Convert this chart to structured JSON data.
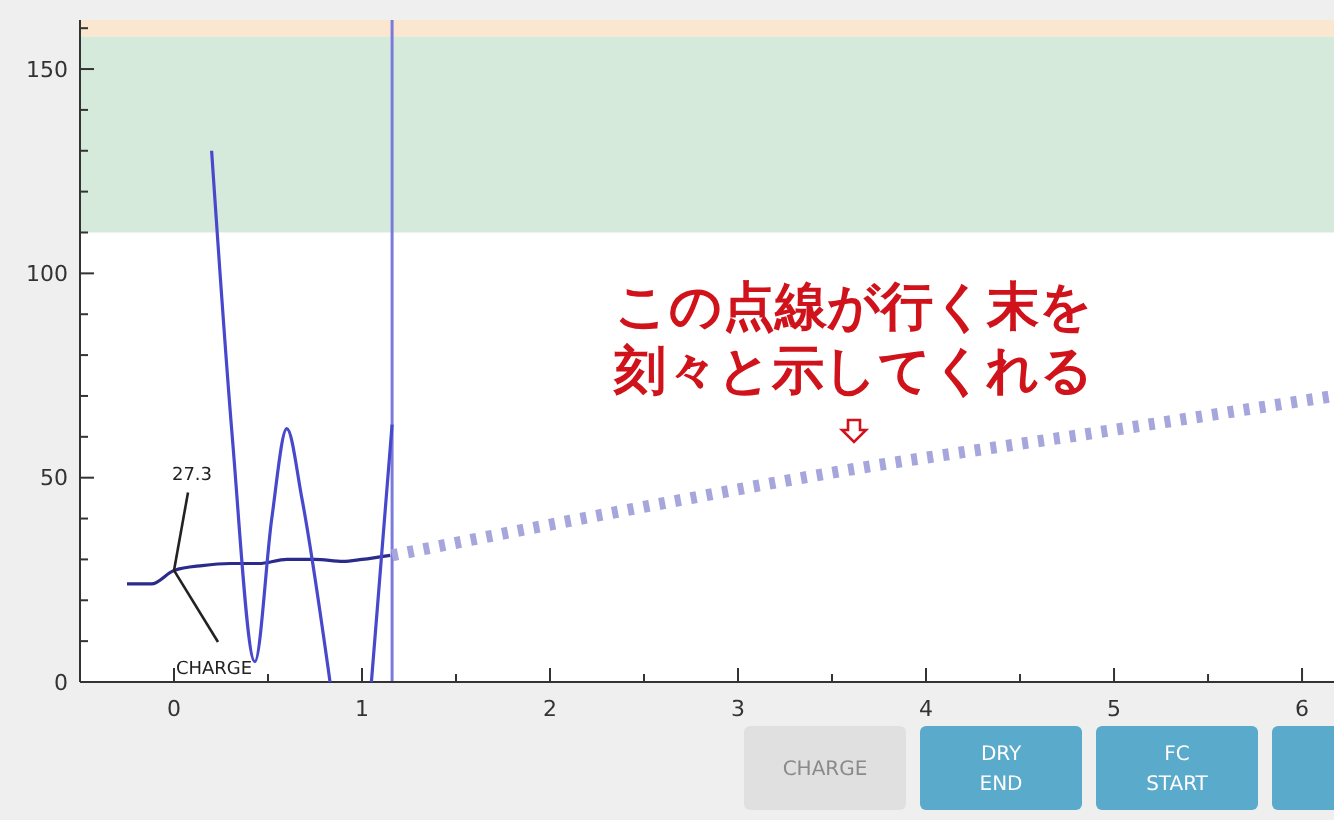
{
  "chart_data": {
    "type": "line",
    "xlim": [
      -0.5,
      6.17
    ],
    "ylim": [
      0,
      162
    ],
    "xticks": [
      0,
      {
        "value": 0.5,
        "label": null
      },
      1,
      {
        "value": 1.5,
        "label": null
      },
      2,
      {
        "value": 2.5,
        "label": null
      },
      3,
      {
        "value": 3.5,
        "label": null
      },
      4,
      {
        "value": 4.5,
        "label": null
      },
      5,
      {
        "value": 5.5,
        "label": null
      },
      6
    ],
    "yticks": [
      0,
      {
        "value": 10,
        "label": null
      },
      {
        "value": 20,
        "label": null
      },
      {
        "value": 30,
        "label": null
      },
      {
        "value": 40,
        "label": null
      },
      50,
      {
        "value": 60,
        "label": null
      },
      {
        "value": 70,
        "label": null
      },
      {
        "value": 80,
        "label": null
      },
      {
        "value": 90,
        "label": null
      },
      100,
      {
        "value": 110,
        "label": null
      },
      {
        "value": 120,
        "label": null
      },
      {
        "value": 130,
        "label": null
      },
      {
        "value": 140,
        "label": null
      },
      150,
      {
        "value": 160,
        "label": null
      }
    ],
    "series": [
      {
        "color": "#2b2b8c",
        "x": [
          -0.25,
          -0.12,
          0,
          0.15,
          0.3,
          0.45,
          0.6,
          0.75,
          0.9,
          1.0,
          1.15
        ],
        "values": [
          24,
          24,
          27.3,
          28.5,
          29,
          29,
          30,
          30,
          29.5,
          30,
          31
        ]
      },
      {
        "color": "#4848cc",
        "x": [
          0.2,
          0.31,
          0.43,
          0.52,
          0.6,
          0.68,
          0.83,
          0.94,
          1.05,
          1.16
        ],
        "values": [
          130,
          60,
          5,
          40,
          62,
          45,
          0,
          null,
          0,
          63
        ]
      },
      {
        "color": "#a6a6dc",
        "line_style": "dashed",
        "x": [
          1.16,
          2.4,
          3.6,
          4.9,
          6.17
        ],
        "values": [
          31,
          42,
          52,
          61,
          70
        ]
      }
    ],
    "ref_lines": [
      {
        "axis": "x",
        "value": 1.16,
        "color": "#7b7bdc"
      }
    ],
    "bands": [
      {
        "axis": "y",
        "from": 110,
        "to": 158,
        "color": "#d6eadb"
      },
      {
        "axis": "y",
        "from": 158,
        "to": 162,
        "color": "#fbe6cf"
      }
    ],
    "annotations": [
      {
        "text": "27.3",
        "x": 0,
        "y": 27.3
      },
      {
        "text": "CHARGE",
        "x": 0,
        "y": 27.3
      },
      "この点線が行く末を",
      "刻々と示してくれる",
      "CHARGE",
      "DRY END",
      "FC START"
    ]
  }
}
